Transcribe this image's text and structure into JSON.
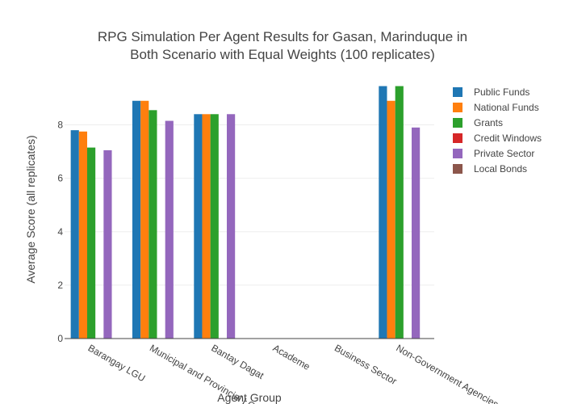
{
  "chart_data": {
    "type": "bar",
    "title": [
      "RPG Simulation Per Agent Results for Gasan, Marinduque in",
      "Both Scenario with Equal Weights (100 replicates)"
    ],
    "xlabel": "Agent Group",
    "ylabel": "Average Score (all replicates)",
    "ylim": [
      0,
      9.8
    ],
    "yticks": [
      0,
      2,
      4,
      6,
      8
    ],
    "grid": true,
    "legend_position": "top-right",
    "categories": [
      "Barangay LGU",
      "Municipal and Provincial LGU",
      "Bantay Dagat",
      "Academe",
      "Business Sector",
      "Non-Government Agencies"
    ],
    "series": [
      {
        "name": "Public Funds",
        "color": "#1f77b4",
        "values": [
          7.8,
          8.9,
          8.4,
          0,
          0,
          9.45
        ]
      },
      {
        "name": "National Funds",
        "color": "#ff7f0e",
        "values": [
          7.75,
          8.9,
          8.4,
          0,
          0,
          8.9
        ]
      },
      {
        "name": "Grants",
        "color": "#2ca02c",
        "values": [
          7.15,
          8.55,
          8.4,
          0,
          0,
          9.45
        ]
      },
      {
        "name": "Credit Windows",
        "color": "#d62728",
        "values": [
          0,
          0,
          0,
          0,
          0,
          0
        ]
      },
      {
        "name": "Private Sector",
        "color": "#9467bd",
        "values": [
          7.05,
          8.15,
          8.4,
          0,
          0,
          7.9
        ]
      },
      {
        "name": "Local Bonds",
        "color": "#8c564b",
        "values": [
          0,
          0,
          0,
          0,
          0,
          0
        ]
      }
    ]
  }
}
